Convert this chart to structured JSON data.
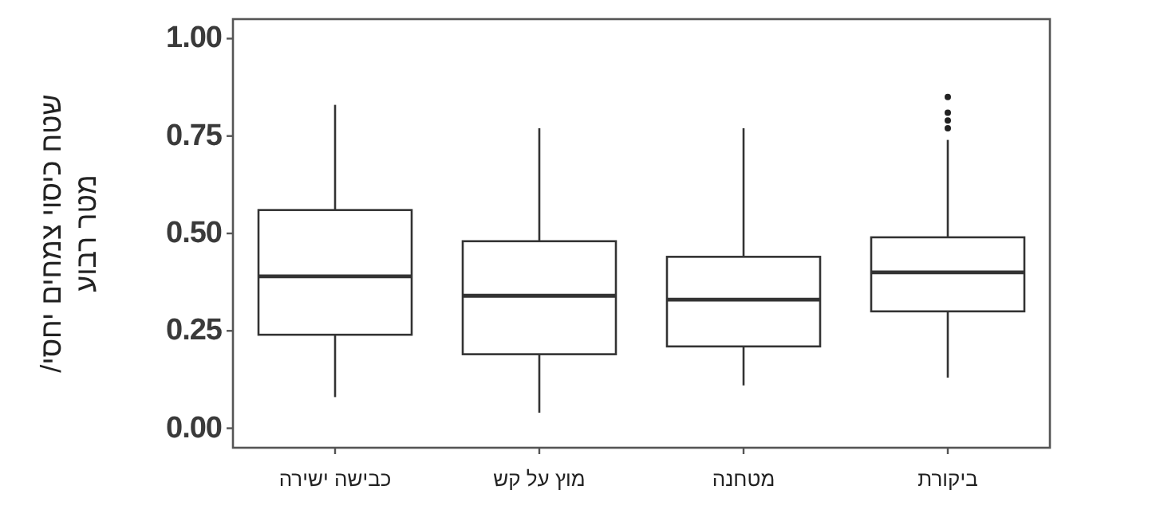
{
  "chart_data": {
    "type": "box",
    "ylabel": "שטח כיסוי צמחים יחסי/\nמטר רבוע",
    "categories": [
      "כבישה ישירה",
      "מוץ על קש",
      "מטחנה",
      "ביקורת"
    ],
    "boxes": [
      {
        "low": 0.08,
        "q1": 0.24,
        "median": 0.39,
        "q3": 0.56,
        "high": 0.83
      },
      {
        "low": 0.04,
        "q1": 0.19,
        "median": 0.34,
        "q3": 0.48,
        "high": 0.77
      },
      {
        "low": 0.11,
        "q1": 0.21,
        "median": 0.33,
        "q3": 0.44,
        "high": 0.77
      },
      {
        "low": 0.13,
        "q1": 0.3,
        "median": 0.4,
        "q3": 0.49,
        "high": 0.74,
        "outliers": [
          0.85,
          0.81,
          0.79,
          0.77
        ]
      }
    ],
    "ylim": [
      -0.05,
      1.05
    ],
    "yticks": [
      {
        "value": 0,
        "label": "0.00"
      },
      {
        "value": 0.25,
        "label": "0.25"
      },
      {
        "value": 0.5,
        "label": "0.50"
      },
      {
        "value": 0.75,
        "label": "0.75"
      },
      {
        "value": 1,
        "label": "1.00"
      }
    ],
    "grid": false
  }
}
